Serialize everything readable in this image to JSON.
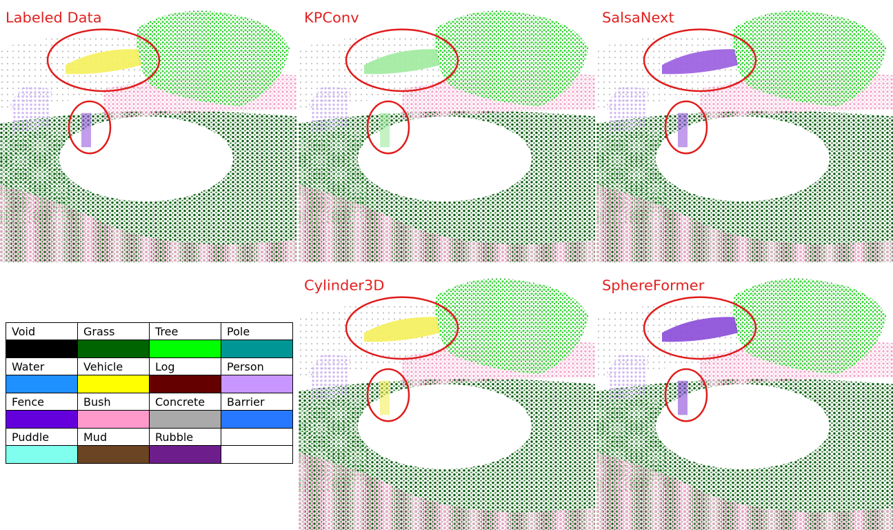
{
  "panels": [
    {
      "title": "Labeled Data"
    },
    {
      "title": "KPConv"
    },
    {
      "title": "SalsaNext"
    },
    {
      "title": "Cylinder3D"
    },
    {
      "title": "SphereFormer"
    }
  ],
  "legend": [
    {
      "label": "Void",
      "color": "#000000"
    },
    {
      "label": "Grass",
      "color": "#006400"
    },
    {
      "label": "Tree",
      "color": "#00ff00"
    },
    {
      "label": "Pole",
      "color": "#009696"
    },
    {
      "label": "Water",
      "color": "#1e90ff"
    },
    {
      "label": "Vehicle",
      "color": "#ffff00"
    },
    {
      "label": "Log",
      "color": "#640000"
    },
    {
      "label": "Person",
      "color": "#c896ff"
    },
    {
      "label": "Fence",
      "color": "#6400dc"
    },
    {
      "label": "Bush",
      "color": "#ff99cc"
    },
    {
      "label": "Concrete",
      "color": "#aaaaaa"
    },
    {
      "label": "Barrier",
      "color": "#2878ff"
    },
    {
      "label": "Puddle",
      "color": "#80ffee"
    },
    {
      "label": "Mud",
      "color": "#6b4423"
    },
    {
      "label": "Rubble",
      "color": "#6e1e8c"
    }
  ]
}
